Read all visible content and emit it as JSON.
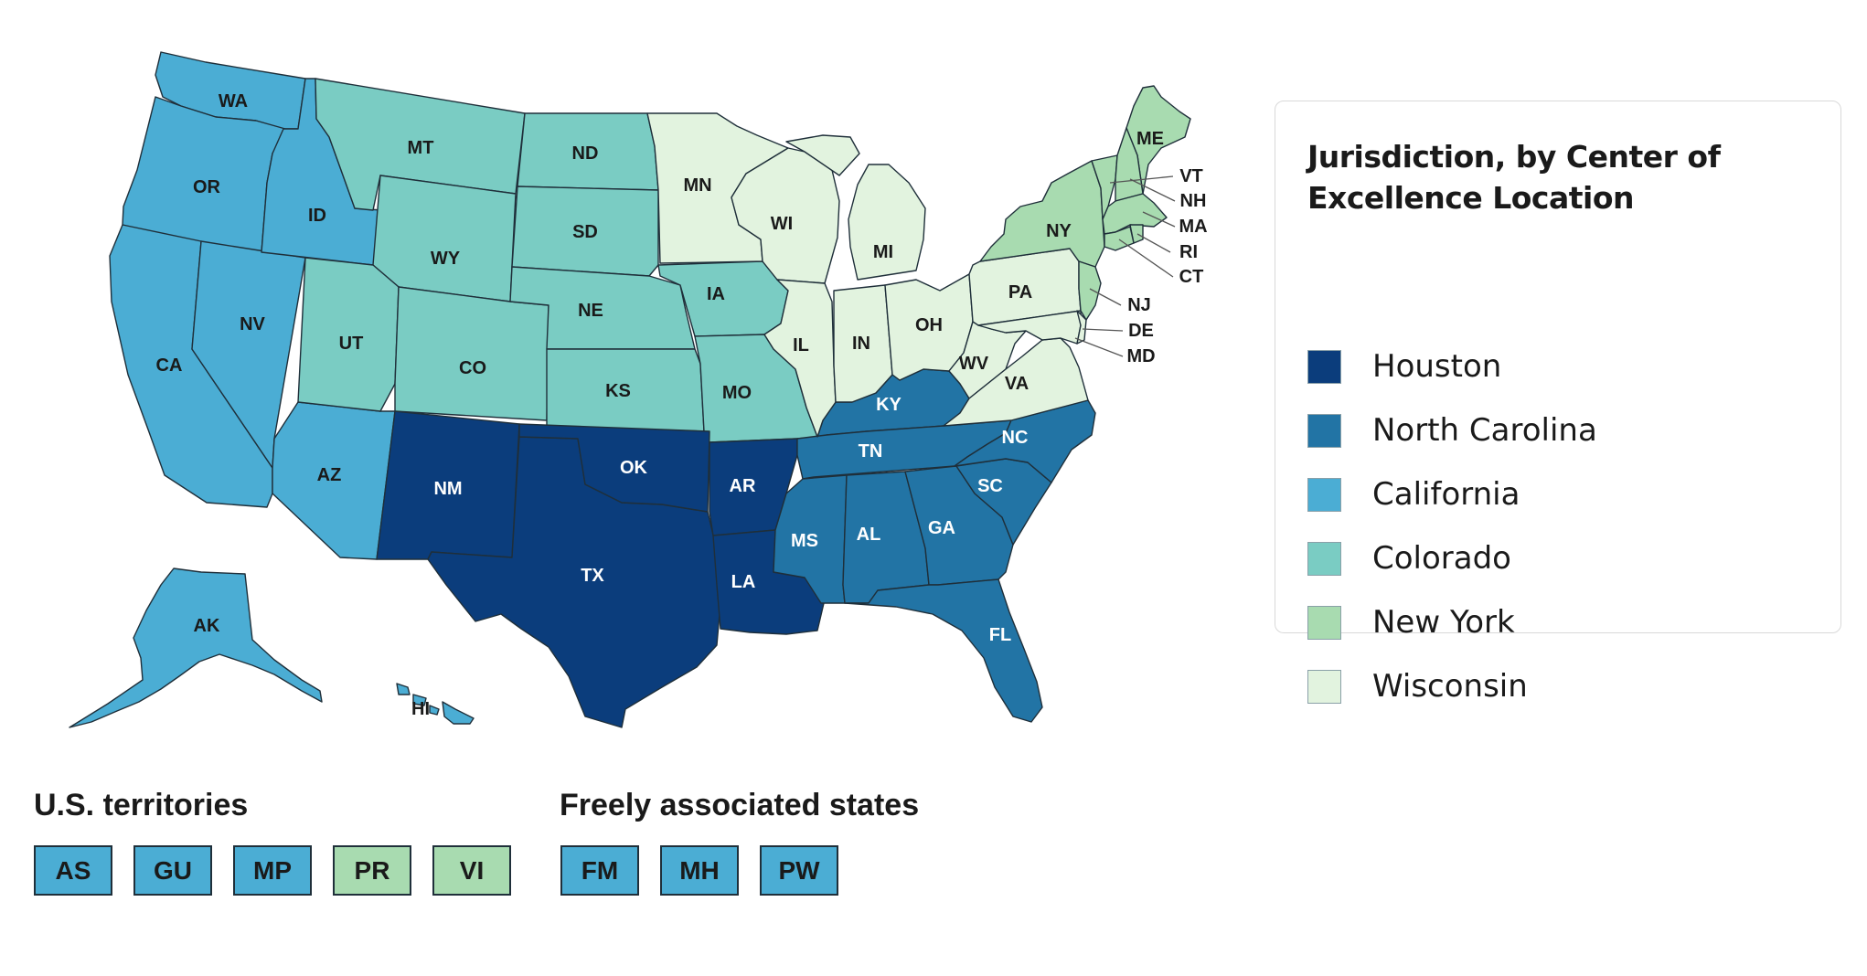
{
  "legend": {
    "title": "Jurisdiction, by Center of Excellence Location",
    "items": [
      {
        "key": "houston",
        "label": "Houston",
        "color": "#0b3d7c"
      },
      {
        "key": "nc",
        "label": "North Carolina",
        "color": "#2274a5"
      },
      {
        "key": "ca",
        "label": "California",
        "color": "#4badd4"
      },
      {
        "key": "co",
        "label": "Colorado",
        "color": "#7accc3"
      },
      {
        "key": "ny",
        "label": "New York",
        "color": "#a8dbb0"
      },
      {
        "key": "wi",
        "label": "Wisconsin",
        "color": "#e2f3df"
      }
    ]
  },
  "states": [
    {
      "abbr": "WA",
      "group": "ca"
    },
    {
      "abbr": "OR",
      "group": "ca"
    },
    {
      "abbr": "CA",
      "group": "ca"
    },
    {
      "abbr": "NV",
      "group": "ca"
    },
    {
      "abbr": "ID",
      "group": "ca"
    },
    {
      "abbr": "AZ",
      "group": "ca"
    },
    {
      "abbr": "AK",
      "group": "ca"
    },
    {
      "abbr": "HI",
      "group": "ca"
    },
    {
      "abbr": "MT",
      "group": "co"
    },
    {
      "abbr": "WY",
      "group": "co"
    },
    {
      "abbr": "UT",
      "group": "co"
    },
    {
      "abbr": "CO",
      "group": "co"
    },
    {
      "abbr": "ND",
      "group": "co"
    },
    {
      "abbr": "SD",
      "group": "co"
    },
    {
      "abbr": "NE",
      "group": "co"
    },
    {
      "abbr": "KS",
      "group": "co"
    },
    {
      "abbr": "IA",
      "group": "co"
    },
    {
      "abbr": "MO",
      "group": "co"
    },
    {
      "abbr": "NM",
      "group": "houston"
    },
    {
      "abbr": "TX",
      "group": "houston"
    },
    {
      "abbr": "OK",
      "group": "houston"
    },
    {
      "abbr": "AR",
      "group": "houston"
    },
    {
      "abbr": "LA",
      "group": "houston"
    },
    {
      "abbr": "KY",
      "group": "nc"
    },
    {
      "abbr": "TN",
      "group": "nc"
    },
    {
      "abbr": "MS",
      "group": "nc"
    },
    {
      "abbr": "AL",
      "group": "nc"
    },
    {
      "abbr": "GA",
      "group": "nc"
    },
    {
      "abbr": "FL",
      "group": "nc"
    },
    {
      "abbr": "SC",
      "group": "nc"
    },
    {
      "abbr": "NC",
      "group": "nc"
    },
    {
      "abbr": "MN",
      "group": "wi"
    },
    {
      "abbr": "WI",
      "group": "wi"
    },
    {
      "abbr": "MI",
      "group": "wi"
    },
    {
      "abbr": "IL",
      "group": "wi"
    },
    {
      "abbr": "IN",
      "group": "wi"
    },
    {
      "abbr": "OH",
      "group": "wi"
    },
    {
      "abbr": "WV",
      "group": "wi"
    },
    {
      "abbr": "VA",
      "group": "wi"
    },
    {
      "abbr": "PA",
      "group": "wi"
    },
    {
      "abbr": "MD",
      "group": "wi"
    },
    {
      "abbr": "DE",
      "group": "wi"
    },
    {
      "abbr": "NY",
      "group": "ny"
    },
    {
      "abbr": "ME",
      "group": "ny"
    },
    {
      "abbr": "VT",
      "group": "ny"
    },
    {
      "abbr": "NH",
      "group": "ny"
    },
    {
      "abbr": "MA",
      "group": "ny"
    },
    {
      "abbr": "RI",
      "group": "ny"
    },
    {
      "abbr": "CT",
      "group": "ny"
    },
    {
      "abbr": "NJ",
      "group": "ny"
    }
  ],
  "territories": {
    "title": "U.S. territories",
    "items": [
      {
        "abbr": "AS",
        "group": "ca"
      },
      {
        "abbr": "GU",
        "group": "ca"
      },
      {
        "abbr": "MP",
        "group": "ca"
      },
      {
        "abbr": "PR",
        "group": "ny"
      },
      {
        "abbr": "VI",
        "group": "ny"
      }
    ]
  },
  "freely_associated": {
    "title": "Freely associated states",
    "items": [
      {
        "abbr": "FM",
        "group": "ca"
      },
      {
        "abbr": "MH",
        "group": "ca"
      },
      {
        "abbr": "PW",
        "group": "ca"
      }
    ]
  }
}
